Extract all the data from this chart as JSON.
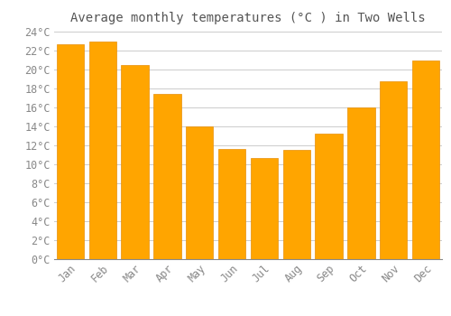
{
  "title": "Average monthly temperatures (°C ) in Two Wells",
  "months": [
    "Jan",
    "Feb",
    "Mar",
    "Apr",
    "May",
    "Jun",
    "Jul",
    "Aug",
    "Sep",
    "Oct",
    "Nov",
    "Dec"
  ],
  "values": [
    22.7,
    23.0,
    20.5,
    17.4,
    14.0,
    11.6,
    10.7,
    11.5,
    13.2,
    16.0,
    18.8,
    21.0
  ],
  "bar_color": "#FFA500",
  "bar_edge_color": "#E8900A",
  "ylim": [
    0,
    24
  ],
  "ytick_step": 2,
  "background_color": "#ffffff",
  "grid_color": "#cccccc",
  "title_fontsize": 10,
  "tick_fontsize": 8.5,
  "tick_color": "#888888",
  "title_color": "#555555",
  "font_family": "monospace",
  "bar_width": 0.85
}
